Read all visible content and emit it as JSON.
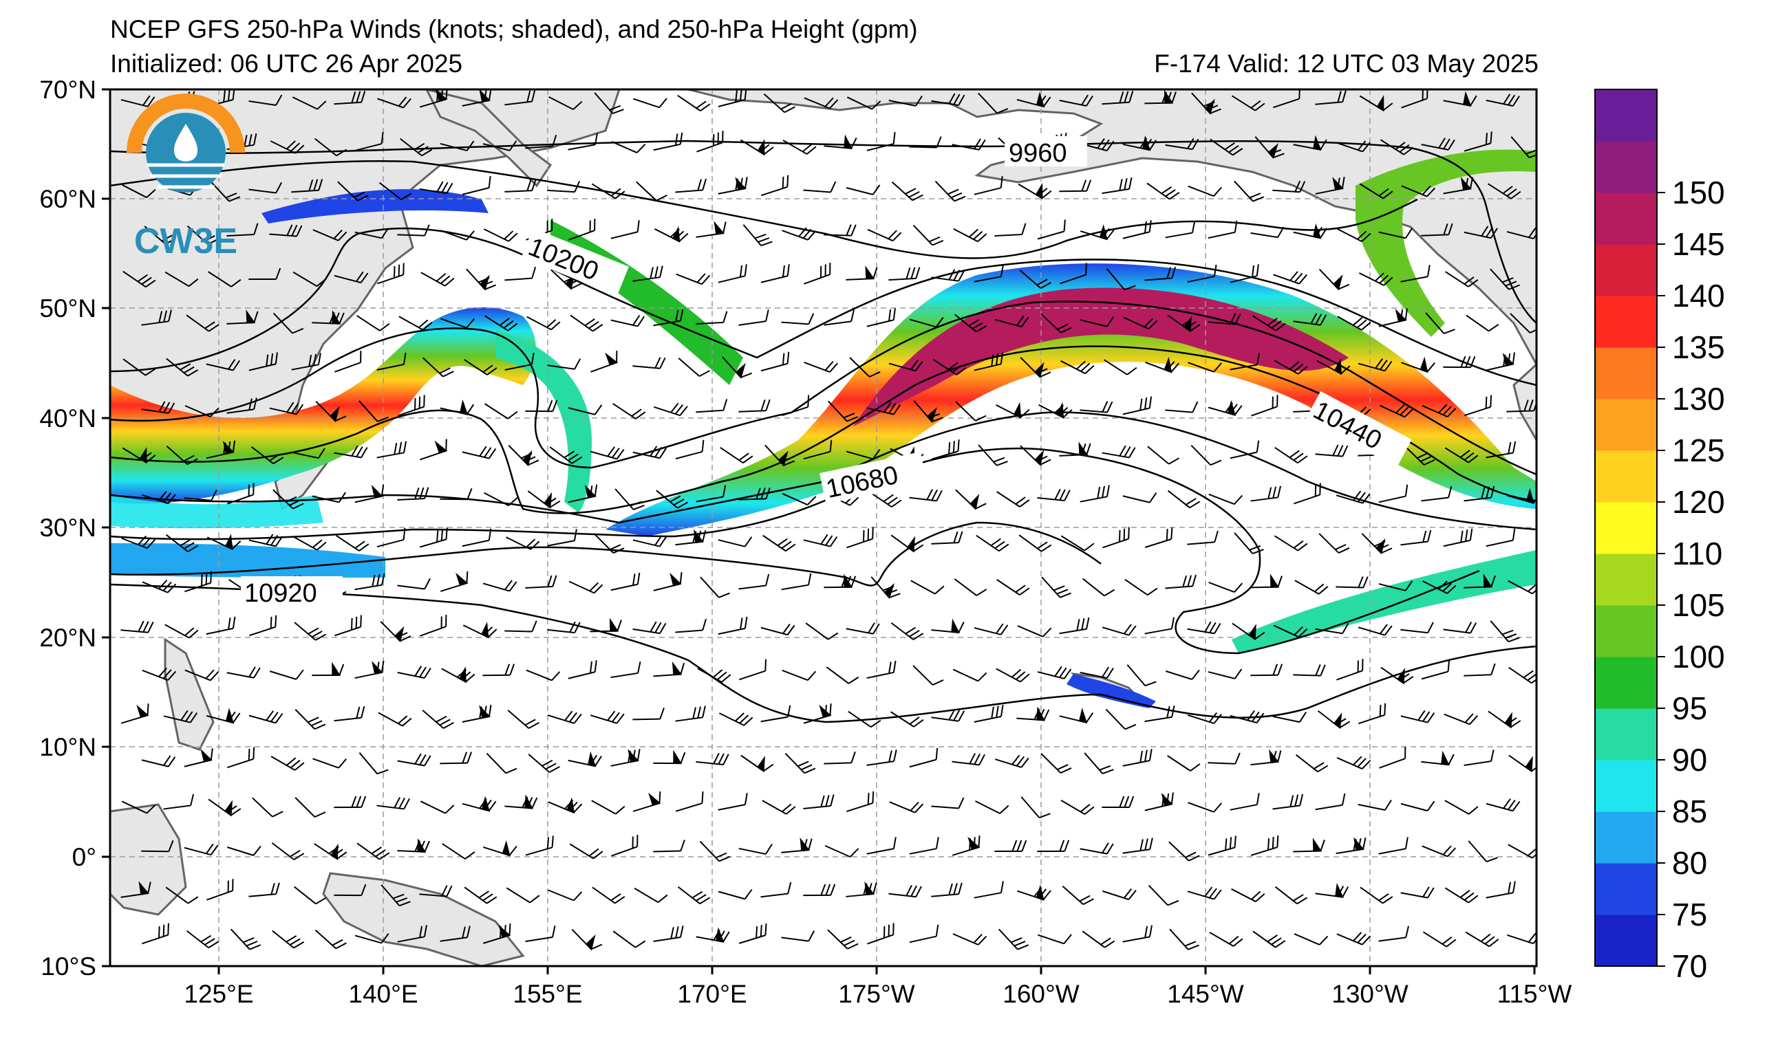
{
  "header": {
    "title": "NCEP GFS 250-hPa Winds (knots; shaded), and 250-hPa Height (gpm)",
    "initialized": "Initialized: 06 UTC 26 Apr 2025",
    "valid": "F-174  Valid: 12 UTC 03 May 2025"
  },
  "logo": {
    "text": "CW3E"
  },
  "map": {
    "lat_labels": [
      "70°N",
      "60°N",
      "50°N",
      "40°N",
      "30°N",
      "20°N",
      "10°N",
      "0°",
      "10°S"
    ],
    "lon_labels": [
      "125°E",
      "140°E",
      "155°E",
      "170°E",
      "175°W",
      "160°W",
      "145°W",
      "130°W",
      "115°W"
    ],
    "contour_labels": [
      "9960",
      "10200",
      "10440",
      "10680",
      "10920"
    ]
  },
  "colorbar": {
    "unit": "knots",
    "ticks": [
      "70",
      "75",
      "80",
      "85",
      "90",
      "95",
      "100",
      "105",
      "110",
      "120",
      "125",
      "130",
      "135",
      "140",
      "145",
      "150"
    ],
    "colors": [
      "#1a23c8",
      "#1f45e6",
      "#22a8f0",
      "#1fe6ec",
      "#27dca2",
      "#22bb2a",
      "#67c623",
      "#a7d81e",
      "#fffa1f",
      "#ffd21f",
      "#ffa21f",
      "#ff7a1f",
      "#ff2a1f",
      "#d8203a",
      "#b51c5e",
      "#8f1d7e",
      "#6a1f98"
    ]
  },
  "colors": {
    "land": "#e6e6e6",
    "coast": "#646464",
    "contour": "#000000",
    "grid": "#9a9a9a"
  }
}
